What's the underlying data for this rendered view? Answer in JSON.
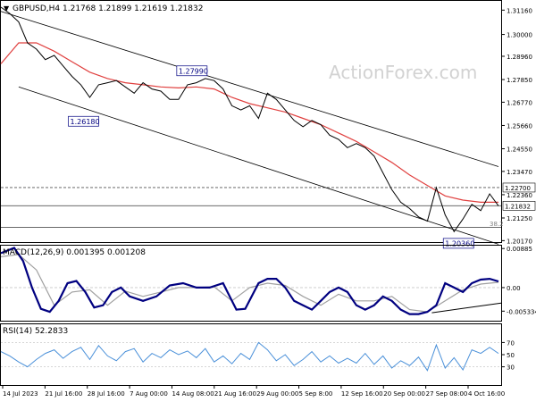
{
  "colors": {
    "price": "#000000",
    "ma": "#e0403f",
    "channel": "#000000",
    "macd": "#000080",
    "signal": "#a0a0a0",
    "rsi": "#4a90d9",
    "label_border": "#000080",
    "label_text": "#000080",
    "grid": "#c8c8c8",
    "watermark": "#d2d2d2"
  },
  "watermark": "ActionForex.com",
  "chart_data": [
    {
      "type": "line",
      "title": "GBPUSD,H4  1.21768 1.21899 1.21619 1.21832",
      "ylim": [
        1.201,
        1.316
      ],
      "yticks": [
        "1.31160",
        "1.30000",
        "1.28960",
        "1.27850",
        "1.26770",
        "1.25660",
        "1.24550",
        "1.23470",
        "1.22360",
        "1.21250",
        "1.20170"
      ],
      "ytick_values": [
        1.3116,
        1.3,
        1.2896,
        1.2785,
        1.2677,
        1.2566,
        1.2455,
        1.2347,
        1.2236,
        1.2125,
        1.2017
      ],
      "price_badges": [
        {
          "label": "1.22700",
          "value": 1.227
        },
        {
          "label": "1.21832",
          "value": 1.21832
        }
      ],
      "annotations": [
        {
          "label": "1.27990",
          "bar": 215,
          "value": 1.2799
        },
        {
          "label": "1.26180",
          "bar": 93,
          "value": 1.2618
        },
        {
          "label": "1.20360",
          "bar": 515,
          "value": 1.2036
        }
      ],
      "fib_note": "38.2",
      "series": [
        {
          "key": "price",
          "x": [
            0,
            10,
            20,
            30,
            40,
            50,
            60,
            70,
            80,
            90,
            100,
            110,
            120,
            130,
            140,
            150,
            160,
            170,
            180,
            190,
            200,
            210,
            220,
            230,
            240,
            250,
            260,
            270,
            280,
            290,
            300,
            310,
            320,
            330,
            340,
            350,
            360,
            370,
            380,
            390,
            400,
            410,
            420,
            430,
            440,
            450,
            460,
            470,
            480,
            490,
            500,
            510,
            520,
            530,
            540,
            550,
            560
          ],
          "values": [
            1.313,
            1.31,
            1.306,
            1.296,
            1.293,
            1.288,
            1.29,
            1.285,
            1.28,
            1.276,
            1.27,
            1.276,
            1.277,
            1.278,
            1.275,
            1.272,
            1.277,
            1.274,
            1.273,
            1.269,
            1.269,
            1.276,
            1.277,
            1.279,
            1.278,
            1.274,
            1.266,
            1.264,
            1.266,
            1.26,
            1.272,
            1.269,
            1.264,
            1.259,
            1.256,
            1.259,
            1.257,
            1.252,
            1.25,
            1.246,
            1.248,
            1.246,
            1.242,
            1.234,
            1.226,
            1.22,
            1.217,
            1.213,
            1.211,
            1.227,
            1.214,
            1.206,
            1.212,
            1.219,
            1.216,
            1.224,
            1.2183
          ]
        },
        {
          "key": "ma",
          "x": [
            0,
            20,
            40,
            60,
            80,
            100,
            120,
            140,
            160,
            180,
            200,
            220,
            240,
            260,
            280,
            300,
            320,
            340,
            360,
            380,
            400,
            420,
            440,
            460,
            480,
            500,
            520,
            540,
            560
          ],
          "values": [
            1.286,
            1.296,
            1.296,
            1.292,
            1.287,
            1.282,
            1.279,
            1.277,
            1.276,
            1.275,
            1.2745,
            1.275,
            1.274,
            1.27,
            1.267,
            1.265,
            1.263,
            1.26,
            1.257,
            1.253,
            1.249,
            1.244,
            1.239,
            1.233,
            1.228,
            1.223,
            1.221,
            1.22,
            1.22
          ]
        }
      ],
      "channel_lines": [
        {
          "x": [
            0,
            560
          ],
          "values": [
            1.311,
            1.237
          ]
        },
        {
          "x": [
            20,
            560
          ],
          "values": [
            1.275,
            1.2
          ]
        }
      ],
      "reference_lines": [
        {
          "value": 1.227,
          "style": "dashed"
        },
        {
          "value": 1.21832,
          "style": "solid"
        },
        {
          "value": 1.208,
          "style": "solid"
        }
      ]
    },
    {
      "type": "line",
      "title": "MACD(12,26,9) 0.001395 0.001208",
      "ylim": [
        -0.0075,
        0.0095
      ],
      "yticks": [
        "0.00885",
        "0.00",
        "-0.005334"
      ],
      "ytick_values": [
        0.00885,
        0.0,
        -0.005334
      ],
      "series": [
        {
          "key": "macd",
          "x": [
            0,
            15,
            25,
            35,
            45,
            55,
            65,
            75,
            85,
            95,
            105,
            115,
            125,
            135,
            145,
            160,
            175,
            190,
            205,
            220,
            235,
            250,
            265,
            275,
            290,
            300,
            310,
            320,
            330,
            340,
            350,
            360,
            370,
            380,
            390,
            400,
            410,
            420,
            430,
            440,
            450,
            460,
            470,
            480,
            490,
            500,
            510,
            520,
            530,
            540,
            550,
            560
          ],
          "values": [
            0.0078,
            0.009,
            0.006,
            0.0,
            -0.0048,
            -0.0055,
            -0.003,
            0.001,
            0.0015,
            -0.001,
            -0.0045,
            -0.004,
            -0.001,
            0.0,
            -0.002,
            -0.003,
            -0.002,
            0.0005,
            0.001,
            0.0,
            0.0,
            0.001,
            -0.005,
            -0.0048,
            0.001,
            0.002,
            0.002,
            0.0,
            -0.003,
            -0.004,
            -0.005,
            -0.003,
            -0.001,
            0.0,
            -0.001,
            -0.004,
            -0.005,
            -0.004,
            -0.002,
            -0.003,
            -0.005,
            -0.006,
            -0.006,
            -0.0055,
            -0.004,
            0.001,
            0.0,
            -0.001,
            0.001,
            0.0018,
            0.002,
            0.0014
          ]
        },
        {
          "key": "signal",
          "x": [
            0,
            20,
            40,
            60,
            80,
            100,
            120,
            140,
            160,
            180,
            200,
            220,
            240,
            260,
            280,
            300,
            320,
            340,
            360,
            380,
            400,
            420,
            440,
            460,
            480,
            500,
            520,
            540,
            560
          ],
          "values": [
            0.007,
            0.0075,
            0.004,
            -0.004,
            -0.001,
            -0.0005,
            -0.004,
            -0.0008,
            -0.002,
            -0.001,
            0.0,
            0.0,
            0.0002,
            -0.003,
            0.0,
            0.001,
            0.0005,
            -0.002,
            -0.004,
            -0.0015,
            -0.003,
            -0.003,
            -0.002,
            -0.005,
            -0.0055,
            -0.003,
            -0.0005,
            0.0008,
            0.0012
          ]
        }
      ],
      "trend_line": {
        "x": [
          485,
          600
        ],
        "values": [
          -0.0057,
          -0.0035
        ]
      },
      "reference_lines": [
        {
          "value": 0.0,
          "style": "dashed"
        }
      ]
    },
    {
      "type": "line",
      "title": "RSI(14) 52.2833",
      "ylim": [
        0,
        100
      ],
      "yticks": [
        "70",
        "50",
        "30"
      ],
      "ytick_values": [
        70,
        50,
        30
      ],
      "xticks": [
        "14 Jul 2023",
        "21 Jul 16:00",
        "28 Jul 16:00",
        "7 Aug 00:00",
        "14 Aug 08:00",
        "21 Aug 16:00",
        "29 Aug 00:00",
        "5 Sep 8:00",
        "12 Sep 16:00",
        "20 Sep 00:00",
        "27 Sep 08:00",
        "4 Oct 16:00"
      ],
      "series": [
        {
          "key": "rsi",
          "x": [
            0,
            10,
            20,
            30,
            40,
            50,
            60,
            70,
            80,
            90,
            100,
            110,
            120,
            130,
            140,
            150,
            160,
            170,
            180,
            190,
            200,
            210,
            220,
            230,
            240,
            250,
            260,
            270,
            280,
            290,
            300,
            310,
            320,
            330,
            340,
            350,
            360,
            370,
            380,
            390,
            400,
            410,
            420,
            430,
            440,
            450,
            460,
            470,
            480,
            490,
            500,
            510,
            520,
            530,
            540,
            550,
            560
          ],
          "values": [
            55,
            48,
            38,
            30,
            42,
            52,
            58,
            44,
            55,
            62,
            42,
            65,
            48,
            40,
            55,
            60,
            38,
            52,
            45,
            58,
            50,
            56,
            45,
            60,
            38,
            48,
            35,
            52,
            42,
            70,
            58,
            40,
            50,
            32,
            42,
            55,
            38,
            48,
            36,
            44,
            36,
            52,
            34,
            48,
            28,
            40,
            32,
            46,
            24,
            66,
            28,
            45,
            25,
            58,
            52,
            62,
            52
          ]
        }
      ],
      "reference_lines": [
        {
          "value": 70,
          "style": "dotted"
        },
        {
          "value": 30,
          "style": "dotted"
        }
      ]
    }
  ]
}
